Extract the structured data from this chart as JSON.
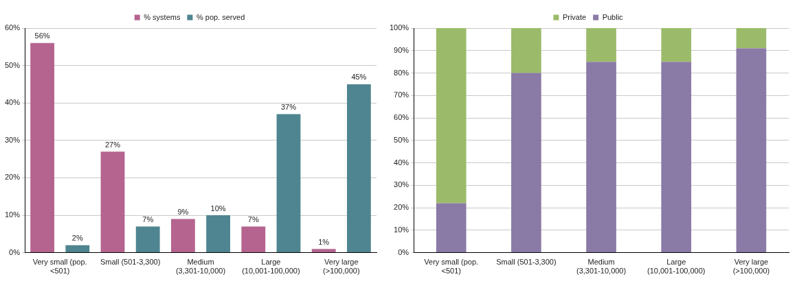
{
  "chart_data": [
    {
      "type": "bar",
      "categories": [
        "Very small (pop. <501)",
        "Small (501-3,300)",
        "Medium (3,301-10,000)",
        "Large (10,001-100,000)",
        "Very large (>100,000)"
      ],
      "series": [
        {
          "name": "% systems",
          "color": "#b5648f",
          "values": [
            56,
            27,
            9,
            7,
            1
          ],
          "value_labels": [
            "56%",
            "27%",
            "9%",
            "7%",
            "1%"
          ]
        },
        {
          "name": "% pop. served",
          "color": "#4f8590",
          "values": [
            2,
            7,
            10,
            37,
            45
          ],
          "value_labels": [
            "2%",
            "7%",
            "10%",
            "37%",
            "45%"
          ]
        }
      ],
      "ylim": [
        0,
        60
      ],
      "yticks": [
        {
          "value": 0,
          "label": "0%"
        },
        {
          "value": 10,
          "label": "10%"
        },
        {
          "value": 20,
          "label": "20%"
        },
        {
          "value": 30,
          "label": "30%"
        },
        {
          "value": 40,
          "label": "40%"
        },
        {
          "value": 50,
          "label": "50%"
        },
        {
          "value": 60,
          "label": "60%"
        }
      ],
      "grid": "y",
      "legend": "top"
    },
    {
      "type": "bar",
      "stacked": true,
      "categories": [
        "Very small (pop. <501)",
        "Small (501-3,300)",
        "Medium (3,301-10,000)",
        "Large (10,001-100,000)",
        "Very large (>100,000)"
      ],
      "series": [
        {
          "name": "Public",
          "color": "#8a7aa6",
          "values": [
            22,
            80,
            85,
            85,
            91
          ]
        },
        {
          "name": "Private",
          "color": "#9bbb6a",
          "values": [
            78,
            20,
            15,
            15,
            9
          ]
        }
      ],
      "ylim": [
        0,
        100
      ],
      "yticks": [
        {
          "value": 0,
          "label": "0%"
        },
        {
          "value": 10,
          "label": "10%"
        },
        {
          "value": 20,
          "label": "20%"
        },
        {
          "value": 30,
          "label": "30%"
        },
        {
          "value": 40,
          "label": "40%"
        },
        {
          "value": 50,
          "label": "50%"
        },
        {
          "value": 60,
          "label": "60%"
        },
        {
          "value": 70,
          "label": "70%"
        },
        {
          "value": 80,
          "label": "80%"
        },
        {
          "value": 90,
          "label": "90%"
        },
        {
          "value": 100,
          "label": "100%"
        }
      ],
      "grid": "y",
      "legend": "top"
    }
  ]
}
